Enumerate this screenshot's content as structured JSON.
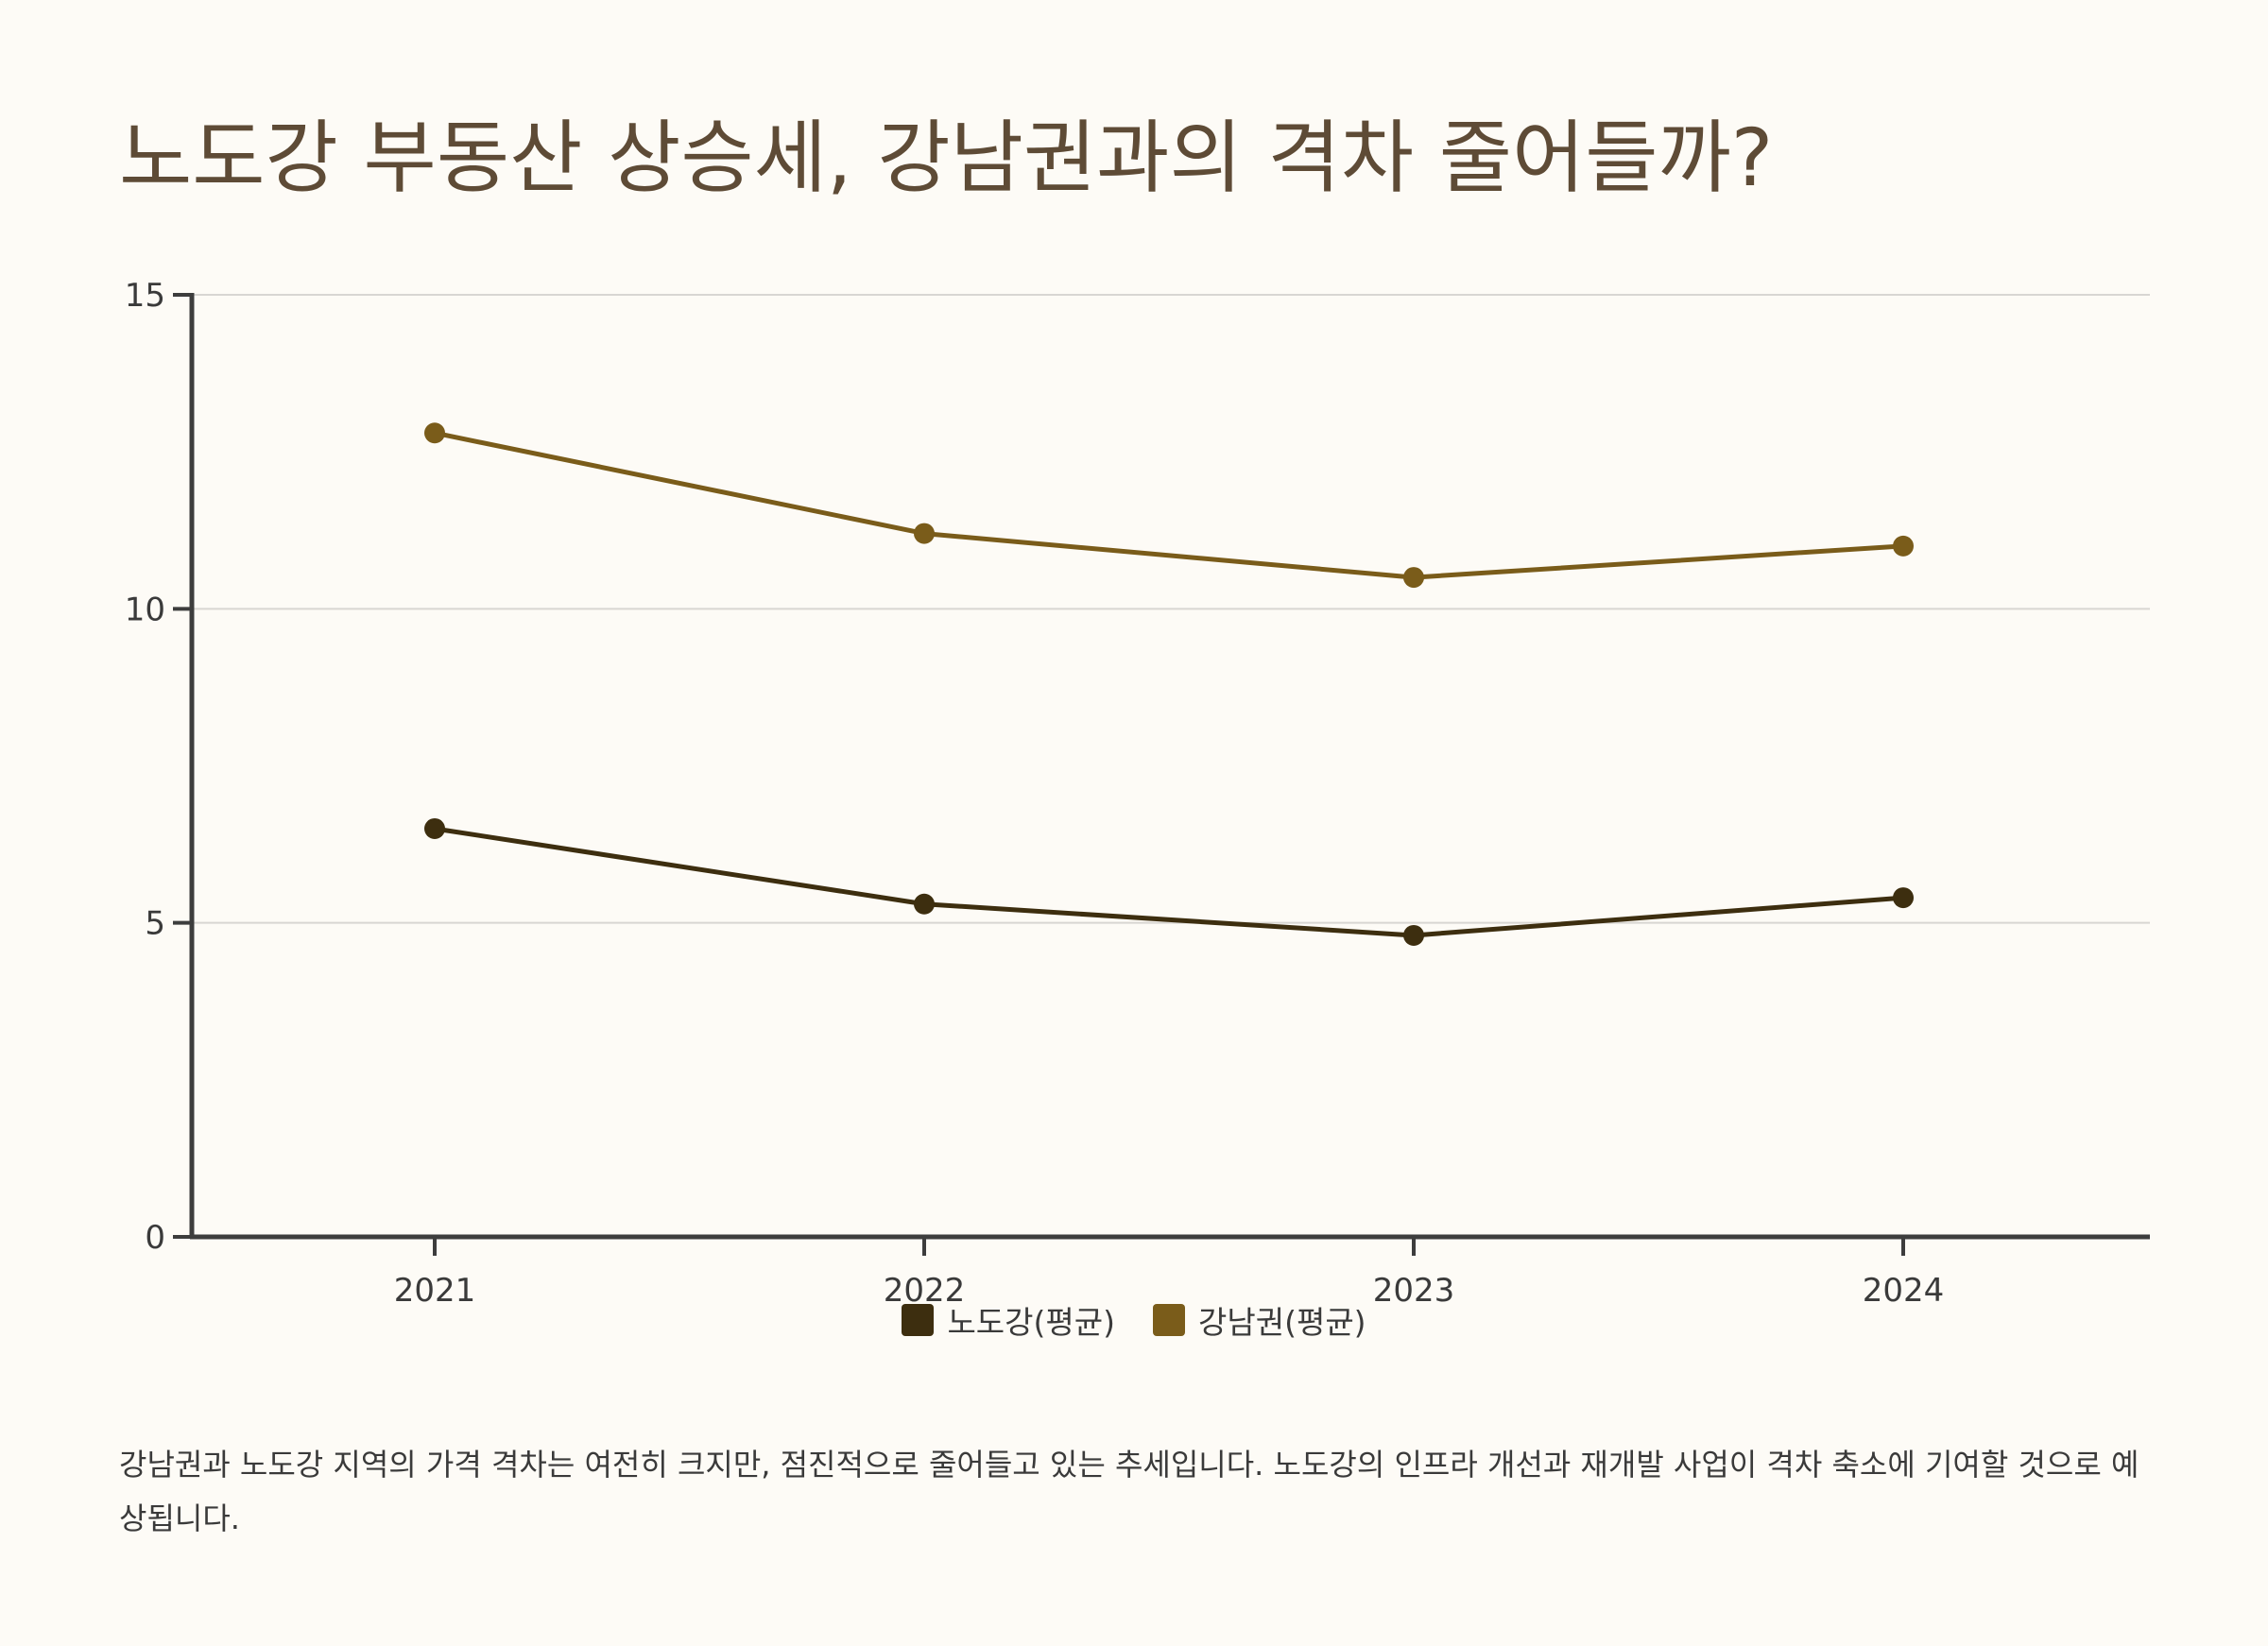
{
  "title": "노도강 부동산 상승세, 강남권과의 격차 줄어들까?",
  "caption": "강남권과 노도강 지역의 가격 격차는 여전히 크지만, 점진적으로 줄어들고 있는 추세입니다. 노도강의 인프라 개선과 재개발 사업이 격차 축소에 기여할 것으로 예상됩니다.",
  "colors": {
    "background": "#fdfbf6",
    "title": "#5e4b36",
    "axis": "#3d3d3d",
    "grid": "#d8d6d2",
    "series_nodogang": "#3d2e0f",
    "series_gangnam": "#7a5c1a"
  },
  "chart_data": {
    "type": "line",
    "title": "노도강 부동산 상승세, 강남권과의 격차 줄어들까?",
    "xlabel": "",
    "ylabel": "",
    "categories": [
      "2021",
      "2022",
      "2023",
      "2024"
    ],
    "ylim": [
      0,
      15
    ],
    "yticks": [
      0,
      5,
      10,
      15
    ],
    "grid": true,
    "legend_position": "bottom-center",
    "series": [
      {
        "name": "노도강(평균)",
        "color": "#3d2e0f",
        "values": [
          6.5,
          5.3,
          4.8,
          5.4
        ]
      },
      {
        "name": "강남권(평균)",
        "color": "#7a5c1a",
        "values": [
          12.8,
          11.2,
          10.5,
          11.0
        ]
      }
    ]
  }
}
